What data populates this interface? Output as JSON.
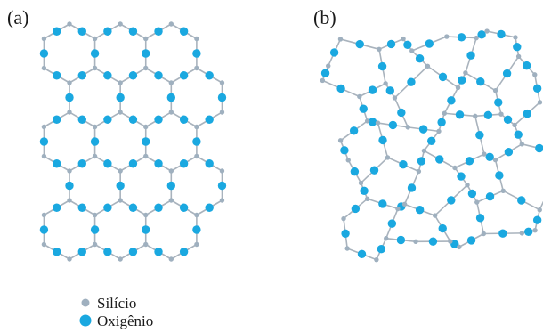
{
  "panels": [
    {
      "id": "a",
      "label": "(a)"
    },
    {
      "id": "b",
      "label": "(b)"
    }
  ],
  "legend": {
    "silicon": {
      "label": "Silício",
      "color": "#9fb0bf"
    },
    "oxygen": {
      "label": "Oxigênio",
      "color": "#1aa8e0"
    }
  },
  "colors": {
    "bond": "#a9b3bd",
    "text": "#1a1a1a"
  }
}
